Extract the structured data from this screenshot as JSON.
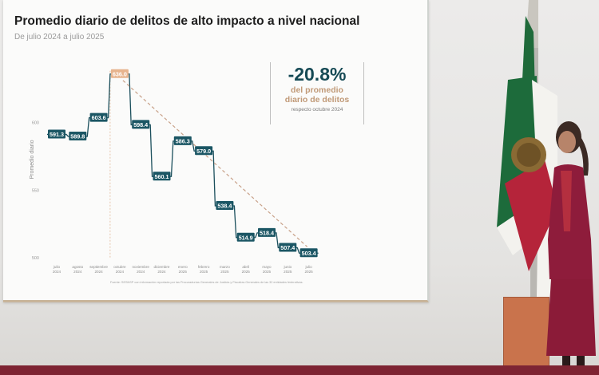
{
  "slide": {
    "title": "Promedio diario de delitos de alto impacto a nivel nacional",
    "subtitle": "De julio 2024 a julio 2025",
    "callout": {
      "value": "-20.8%",
      "line1": "del promedio",
      "line2": "diario de delitos",
      "note": "respecto octubre 2024"
    },
    "source": "Fuente: SESNSP con información reportada por las Procuradurías Generales de Justicia y Fiscalías Generales de las 32 entidades federativas."
  },
  "chart_data": {
    "type": "line",
    "style": "step",
    "title": "Promedio diario de delitos de alto impacto a nivel nacional",
    "subtitle": "De julio 2024 a julio 2025",
    "ylabel": "Promedio diario",
    "xlabel": "",
    "ylim": [
      500,
      640
    ],
    "yticks": [
      "600",
      "550",
      "500"
    ],
    "categories": [
      [
        "julio",
        "2024"
      ],
      [
        "agosto",
        "2024"
      ],
      [
        "septiembre",
        "2024"
      ],
      [
        "octubre",
        "2024"
      ],
      [
        "noviembre",
        "2024"
      ],
      [
        "diciembre",
        "2024"
      ],
      [
        "enero",
        "2025"
      ],
      [
        "febrero",
        "2025"
      ],
      [
        "marzo",
        "2025"
      ],
      [
        "abril",
        "2025"
      ],
      [
        "mayo",
        "2025"
      ],
      [
        "junio",
        "2025"
      ],
      [
        "julio",
        "2025"
      ]
    ],
    "values": [
      591.3,
      589.8,
      603.6,
      636.0,
      598.4,
      560.1,
      586.3,
      579.0,
      538.4,
      514.9,
      518.4,
      507.4,
      503.4
    ],
    "labels": [
      "591.3",
      "589.8",
      "603.6",
      "636.0",
      "598.4",
      "560.1",
      "586.3",
      "579.0",
      "538.4",
      "514.9",
      "518.4",
      "507.4",
      "503.4"
    ],
    "highlight_index": 3,
    "trend_line": {
      "from_index": 3,
      "to_index": 12,
      "style": "dashed"
    },
    "grid": false,
    "colors": {
      "line": "#1b4f5c",
      "label_bg": "#1b5664",
      "highlight": "#e7b48e",
      "trend": "#c8a189"
    }
  }
}
